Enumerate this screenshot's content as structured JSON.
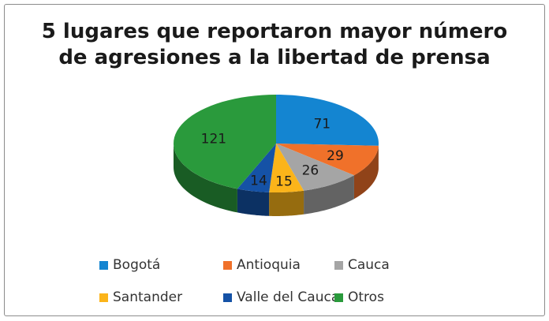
{
  "chart_data": {
    "type": "pie",
    "title_line1": "5 lugares que reportaron mayor número",
    "title_line2": "de agresiones a la libertad de prensa",
    "categories": [
      "Bogotá",
      "Antioquia",
      "Cauca",
      "Santander",
      "Valle del Cauca",
      "Otros"
    ],
    "values": [
      71,
      29,
      26,
      15,
      14,
      121
    ],
    "colors": [
      "#1485d1",
      "#f0712a",
      "#a5a5a5",
      "#fbb41a",
      "#1552a6",
      "#2a9a3c"
    ],
    "legend_position": "bottom",
    "three_d": true
  }
}
